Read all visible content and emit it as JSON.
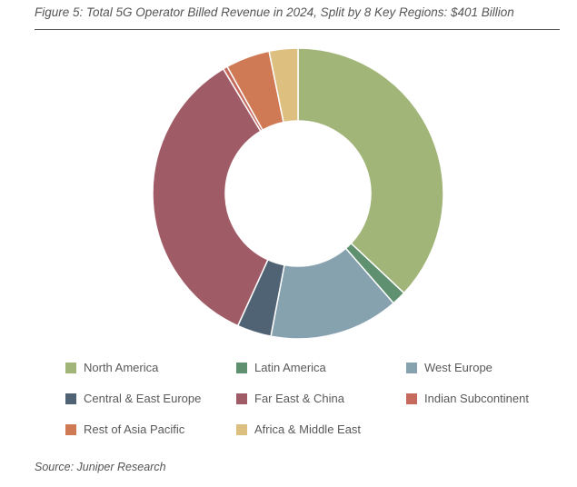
{
  "figure": {
    "title": "Figure 5: Total 5G Operator Billed Revenue in 2024, Split by 8 Key Regions: $401 Billion",
    "source": "Source: Juniper Research"
  },
  "chart_data": {
    "type": "pie",
    "donut": true,
    "unit": "share of total revenue (%)",
    "categories": [
      "North America",
      "Latin America",
      "West Europe",
      "Central & East Europe",
      "Far East & China",
      "Indian Subcontinent",
      "Rest of Asia Pacific",
      "Africa & Middle East"
    ],
    "values": [
      37.0,
      1.6,
      14.4,
      3.8,
      34.6,
      0.5,
      4.9,
      3.2
    ],
    "colors": [
      "#A2B579",
      "#5F9070",
      "#86A2AF",
      "#4F6375",
      "#A05C66",
      "#C66A5E",
      "#CF7A55",
      "#DDBF80"
    ],
    "legend_position": "bottom"
  }
}
